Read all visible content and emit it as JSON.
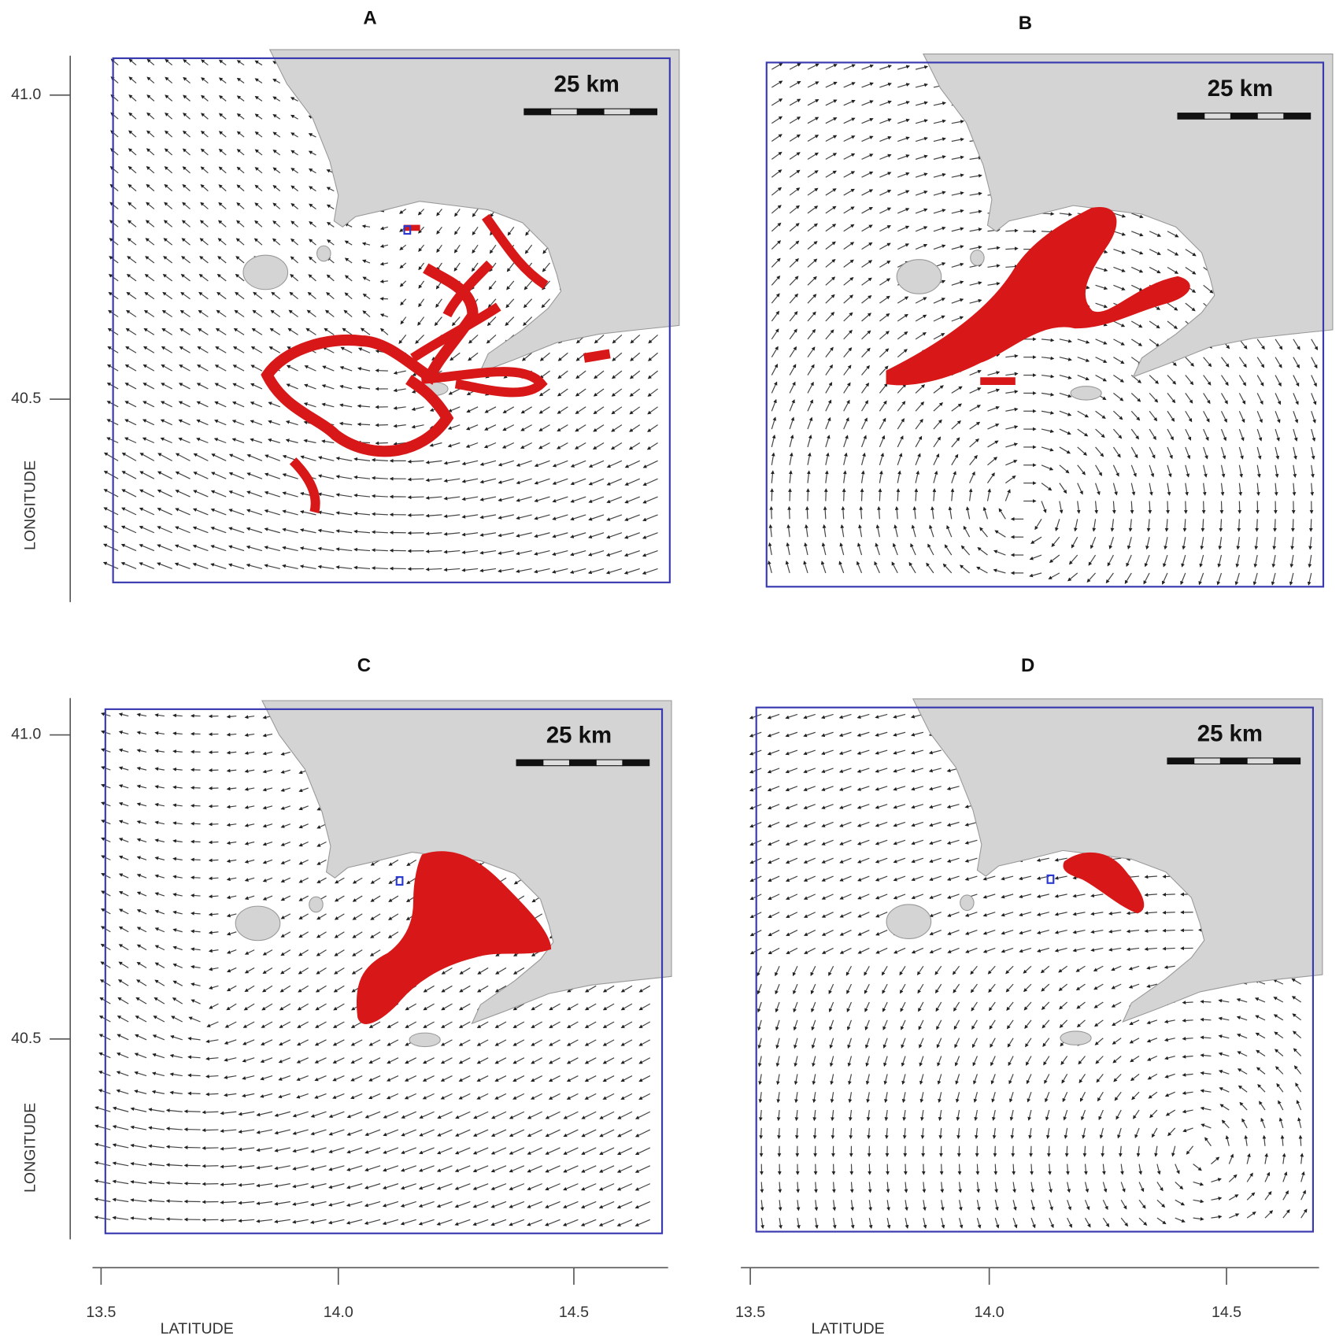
{
  "panels": [
    {
      "label": "A",
      "scale_label": "25 km"
    },
    {
      "label": "B",
      "scale_label": "25 km"
    },
    {
      "label": "C",
      "scale_label": "25 km"
    },
    {
      "label": "D",
      "scale_label": "25 km"
    }
  ],
  "y_axis_top": {
    "ticks": [
      "41.0",
      "40.5"
    ],
    "title": "LONGITUDE"
  },
  "y_axis_bottom": {
    "ticks": [
      "41.0",
      "40.5"
    ],
    "title": "LONGITUDE"
  },
  "x_axis_left": {
    "ticks": [
      "13.5",
      "14.0",
      "14.5"
    ],
    "title": "LATITUDE"
  },
  "x_axis_right": {
    "ticks": [
      "13.5",
      "14.0",
      "14.5"
    ],
    "title": "LATITUDE"
  }
}
